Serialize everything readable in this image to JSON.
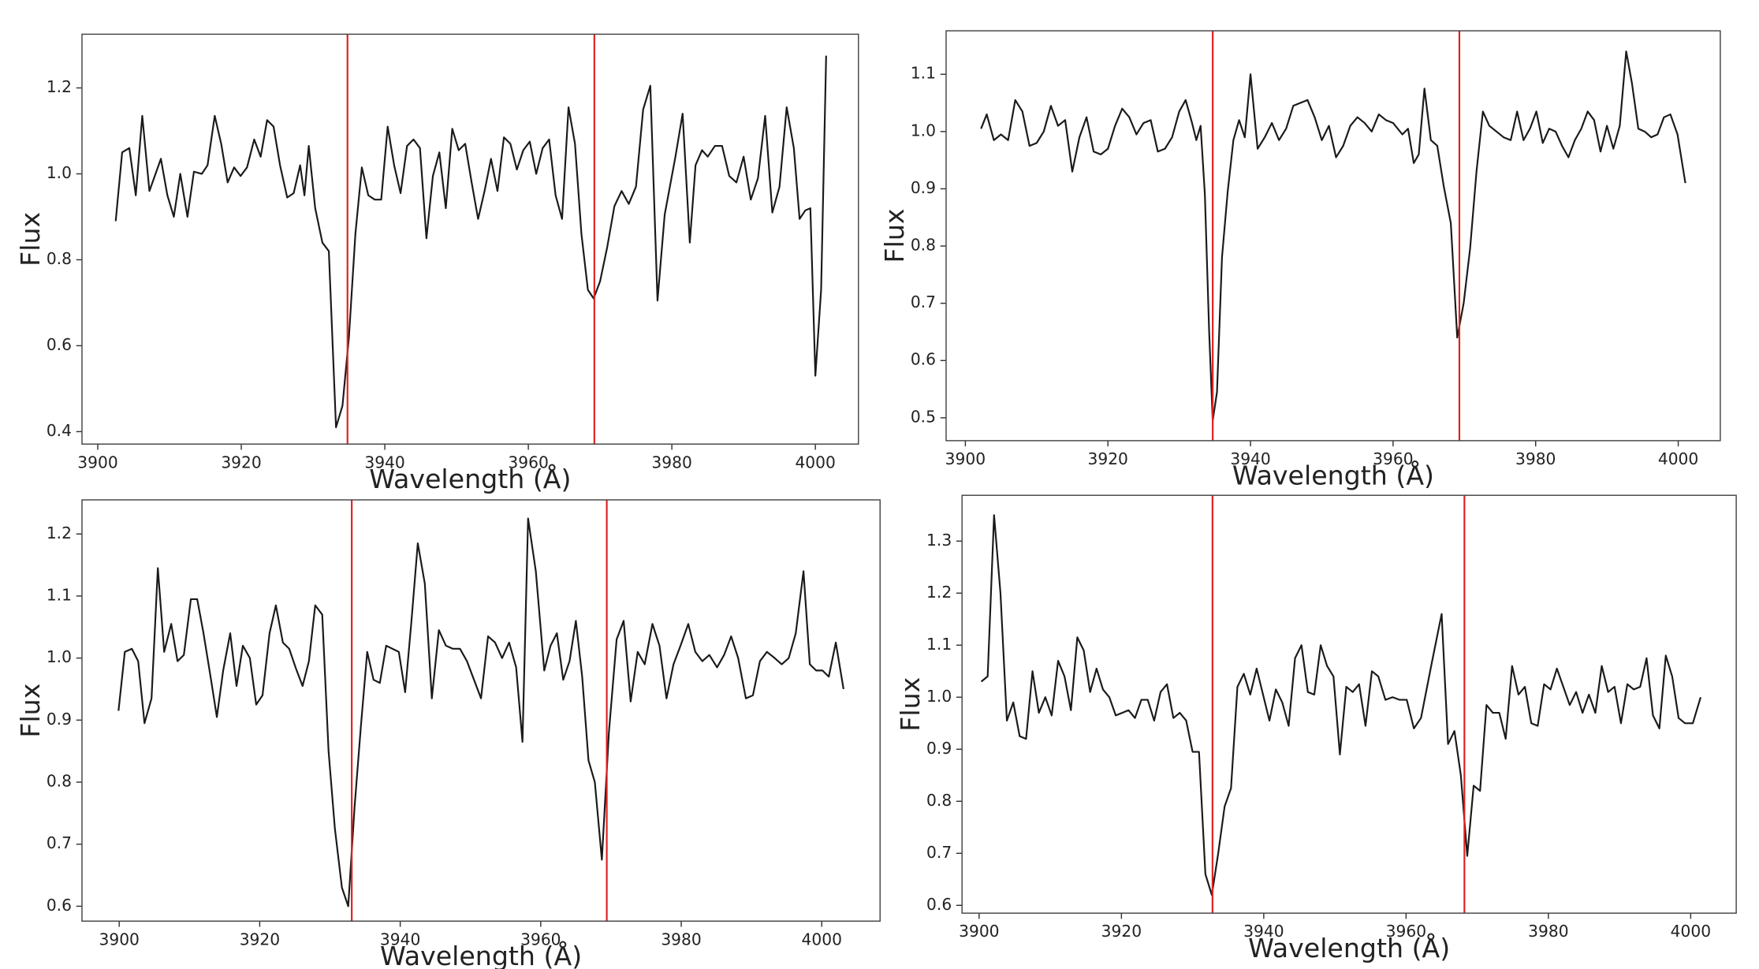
{
  "chart_data": [
    {
      "type": "line",
      "xlabel": "Wavelength (Å)",
      "ylabel": "Flux",
      "color": "#1a1a1a",
      "vline_color": "#e02020",
      "vlines": [
        3934.8,
        3969.2
      ],
      "xlim": [
        3897.8,
        4006
      ],
      "xticks": [
        3900,
        3920,
        3940,
        3960,
        3980,
        4000
      ],
      "ylim": [
        0.371,
        1.325
      ],
      "yticks": [
        0.4,
        0.6,
        0.8,
        {
          "value": 1,
          "label": "1.0"
        },
        1.2
      ],
      "x": [
        3902.5,
        3903.4,
        3904.4,
        3905.3,
        3906.2,
        3907.2,
        3908.8,
        3909.7,
        3910.6,
        3911.5,
        3912.5,
        3913.4,
        3914.5,
        3915.3,
        3916.3,
        3917.2,
        3918.1,
        3919,
        3919.9,
        3920.8,
        3921.8,
        3922.7,
        3923.6,
        3924.5,
        3925.4,
        3926.4,
        3927.3,
        3928.2,
        3928.8,
        3929.4,
        3930.3,
        3931.3,
        3932.2,
        3933.2,
        3934.1,
        3935,
        3935.9,
        3936.8,
        3937.7,
        3938.6,
        3939.5,
        3940.4,
        3941.3,
        3942.2,
        3943.1,
        3944,
        3944.9,
        3945.8,
        3946.7,
        3947.6,
        3948.5,
        3949.4,
        3950.3,
        3951.2,
        3952.1,
        3953,
        3953.9,
        3954.8,
        3955.7,
        3956.6,
        3957.5,
        3958.4,
        3959.3,
        3960.2,
        3961.1,
        3962,
        3962.9,
        3963.8,
        3964.7,
        3965.6,
        3966.5,
        3967.4,
        3968.3,
        3969.1,
        3970,
        3971,
        3972,
        3973,
        3974,
        3975,
        3976,
        3977,
        3978,
        3979,
        3980.5,
        3981.5,
        3982.5,
        3983.3,
        3984.2,
        3985,
        3986,
        3987,
        3988,
        3989,
        3990,
        3991,
        3992,
        3993,
        3994,
        3995,
        3996,
        3997,
        3997.8,
        3998.6,
        3999.3,
        4000,
        4000.8,
        4001.5
      ],
      "values": [
        0.89,
        1.05,
        1.06,
        0.95,
        1.135,
        0.96,
        1.035,
        0.95,
        0.9,
        1.0,
        0.9,
        1.005,
        1.0,
        1.02,
        1.135,
        1.07,
        0.98,
        1.015,
        0.995,
        1.015,
        1.08,
        1.04,
        1.125,
        1.11,
        1.02,
        0.945,
        0.955,
        1.02,
        0.95,
        1.065,
        0.92,
        0.84,
        0.82,
        0.41,
        0.46,
        0.62,
        0.86,
        1.015,
        0.95,
        0.94,
        0.94,
        1.11,
        1.02,
        0.955,
        1.065,
        1.08,
        1.06,
        0.85,
        0.995,
        1.05,
        0.92,
        1.105,
        1.055,
        1.07,
        0.98,
        0.895,
        0.96,
        1.035,
        0.96,
        1.085,
        1.07,
        1.01,
        1.055,
        1.075,
        1.0,
        1.06,
        1.08,
        0.95,
        0.895,
        1.155,
        1.07,
        0.86,
        0.73,
        0.71,
        0.75,
        0.83,
        0.925,
        0.96,
        0.93,
        0.97,
        1.15,
        1.205,
        0.705,
        0.905,
        1.04,
        1.14,
        0.84,
        1.02,
        1.055,
        1.04,
        1.065,
        1.065,
        0.995,
        0.98,
        1.04,
        0.94,
        0.99,
        1.135,
        0.91,
        0.97,
        1.155,
        1.06,
        0.895,
        0.915,
        0.92,
        0.53,
        0.73,
        1.275
      ]
    },
    {
      "type": "line",
      "xlabel": "Wavelength (Å)",
      "ylabel": "Flux",
      "color": "#1a1a1a",
      "vline_color": "#e02020",
      "vlines": [
        3934.7,
        3969.3
      ],
      "xlim": [
        3897.3,
        4005.9
      ],
      "xticks": [
        3900,
        3920,
        3940,
        3960,
        3980,
        4000
      ],
      "ylim": [
        0.46,
        1.176
      ],
      "yticks": [
        0.5,
        0.6,
        0.7,
        0.8,
        0.9,
        {
          "value": 1,
          "label": "1.0"
        },
        1.1
      ],
      "x": [
        3902.2,
        3903,
        3904,
        3905,
        3906,
        3907,
        3908,
        3909,
        3910,
        3911,
        3912,
        3913,
        3914,
        3915,
        3916,
        3917,
        3918,
        3919,
        3920,
        3921,
        3922,
        3923,
        3924,
        3925,
        3926,
        3927,
        3928,
        3929,
        3930,
        3930.9,
        3931.8,
        3932.4,
        3933,
        3933.6,
        3934.2,
        3934.7,
        3935.3,
        3936,
        3936.8,
        3937.6,
        3938.4,
        3939.2,
        3940,
        3941,
        3942,
        3943,
        3944,
        3945,
        3946,
        3947,
        3948,
        3949,
        3950,
        3951,
        3952,
        3953,
        3954,
        3955,
        3956,
        3957,
        3958,
        3959,
        3960,
        3961.3,
        3962.1,
        3962.9,
        3963.6,
        3964.4,
        3965.3,
        3966.2,
        3967.1,
        3968.1,
        3969,
        3969.9,
        3970.8,
        3971.7,
        3972.6,
        3973.5,
        3974.5,
        3975.5,
        3976.5,
        3977.4,
        3978.3,
        3979.2,
        3980.1,
        3981,
        3981.9,
        3982.8,
        3983.7,
        3984.6,
        3985.5,
        3986.4,
        3987.3,
        3988.2,
        3989.1,
        3990,
        3990.9,
        3991.8,
        3992.7,
        3993.5,
        3994.4,
        3995.3,
        3996.2,
        3997.1,
        3998,
        3998.9,
        3999.9,
        4001
      ],
      "values": [
        1.005,
        1.03,
        0.985,
        0.995,
        0.985,
        1.055,
        1.035,
        0.975,
        0.98,
        1.0,
        1.045,
        1.01,
        1.02,
        0.93,
        0.99,
        1.025,
        0.965,
        0.96,
        0.97,
        1.01,
        1.04,
        1.025,
        0.995,
        1.015,
        1.02,
        0.965,
        0.97,
        0.99,
        1.035,
        1.055,
        1.015,
        0.985,
        1.01,
        0.89,
        0.65,
        0.495,
        0.545,
        0.78,
        0.895,
        0.985,
        1.02,
        0.99,
        1.1,
        0.97,
        0.99,
        1.015,
        0.985,
        1.005,
        1.045,
        1.05,
        1.055,
        1.025,
        0.985,
        1.01,
        0.955,
        0.975,
        1.01,
        1.025,
        1.015,
        1.0,
        1.03,
        1.02,
        1.015,
        0.995,
        1.005,
        0.945,
        0.96,
        1.075,
        0.985,
        0.975,
        0.905,
        0.84,
        0.64,
        0.7,
        0.795,
        0.93,
        1.035,
        1.01,
        1.0,
        0.99,
        0.985,
        1.035,
        0.985,
        1.005,
        1.035,
        0.98,
        1.005,
        1.0,
        0.975,
        0.955,
        0.985,
        1.005,
        1.035,
        1.02,
        0.965,
        1.01,
        0.97,
        1.01,
        1.14,
        1.085,
        1.005,
        1.0,
        0.99,
        0.995,
        1.025,
        1.03,
        0.995,
        0.91
      ]
    },
    {
      "type": "line",
      "xlabel": "Wavelength (Å)",
      "ylabel": "Flux",
      "color": "#1a1a1a",
      "vline_color": "#e02020",
      "vlines": [
        3933.1,
        3969.4
      ],
      "xlim": [
        3894.7,
        4008.3
      ],
      "xticks": [
        3900,
        3920,
        3940,
        3960,
        3980,
        4000
      ],
      "ylim": [
        0.576,
        1.255
      ],
      "yticks": [
        0.6,
        0.7,
        0.8,
        0.9,
        {
          "value": 1,
          "label": "1.0"
        },
        1.1,
        1.2
      ],
      "x": [
        3899.9,
        3900.8,
        3901.8,
        3902.7,
        3903.6,
        3904.6,
        3905.5,
        3906.4,
        3907.4,
        3908.3,
        3909.2,
        3910.2,
        3911.1,
        3912,
        3913,
        3913.9,
        3914.8,
        3915.8,
        3916.7,
        3917.6,
        3918.6,
        3919.5,
        3920.4,
        3921.4,
        3922.3,
        3923.3,
        3924.2,
        3925.1,
        3926.1,
        3927,
        3927.9,
        3928.9,
        3929.8,
        3930.7,
        3931.7,
        3932.6,
        3933.5,
        3934.4,
        3935.3,
        3936.2,
        3937.1,
        3938,
        3938.9,
        3939.8,
        3940.7,
        3941.6,
        3942.5,
        3943.5,
        3944.5,
        3945.5,
        3946.5,
        3947.5,
        3948.5,
        3949.5,
        3950.5,
        3951.5,
        3952.5,
        3953.5,
        3954.5,
        3955.5,
        3956.5,
        3957.4,
        3958.2,
        3959.3,
        3960.5,
        3961.4,
        3962.3,
        3963.2,
        3964.1,
        3965,
        3965.9,
        3966.8,
        3967.7,
        3968.7,
        3969.7,
        3970.8,
        3971.8,
        3972.8,
        3973.8,
        3974.8,
        3975.9,
        3976.9,
        3977.9,
        3978.9,
        3979.9,
        3981,
        3982,
        3983,
        3984,
        3985.1,
        3986.1,
        3987.1,
        3988.1,
        3989.2,
        3990.2,
        3991.2,
        3992.2,
        3993.3,
        3994.3,
        3995.3,
        3996.3,
        3997.4,
        3998.3,
        3999.2,
        4000.1,
        4001,
        4002,
        4003.1
      ],
      "values": [
        0.915,
        1.01,
        1.015,
        0.995,
        0.895,
        0.935,
        1.145,
        1.01,
        1.055,
        0.995,
        1.005,
        1.095,
        1.095,
        1.04,
        0.97,
        0.905,
        0.98,
        1.04,
        0.955,
        1.02,
        1.0,
        0.925,
        0.94,
        1.04,
        1.085,
        1.025,
        1.015,
        0.985,
        0.955,
        0.995,
        1.085,
        1.07,
        0.85,
        0.725,
        0.63,
        0.6,
        0.76,
        0.89,
        1.01,
        0.965,
        0.96,
        1.02,
        1.015,
        1.01,
        0.945,
        1.06,
        1.185,
        1.12,
        0.935,
        1.045,
        1.02,
        1.015,
        1.015,
        0.995,
        0.965,
        0.935,
        1.035,
        1.025,
        1.0,
        1.025,
        0.985,
        0.865,
        1.225,
        1.14,
        0.98,
        1.02,
        1.04,
        0.965,
        0.995,
        1.06,
        0.97,
        0.835,
        0.8,
        0.675,
        0.88,
        1.03,
        1.06,
        0.93,
        1.01,
        0.99,
        1.055,
        1.02,
        0.935,
        0.99,
        1.02,
        1.055,
        1.01,
        0.995,
        1.005,
        0.985,
        1.005,
        1.035,
        1.0,
        0.935,
        0.94,
        0.995,
        1.01,
        1.0,
        0.99,
        1.0,
        1.04,
        1.14,
        0.99,
        0.98,
        0.98,
        0.97,
        1.025,
        0.95
      ]
    },
    {
      "type": "line",
      "xlabel": "Wavelength (Å)",
      "ylabel": "Flux",
      "color": "#1a1a1a",
      "vline_color": "#e02020",
      "vlines": [
        3932.8,
        3968.2
      ],
      "xlim": [
        3897.6,
        4006.4
      ],
      "xticks": [
        3900,
        3920,
        3940,
        3960,
        3980,
        4000
      ],
      "ylim": [
        0.585,
        1.388
      ],
      "yticks": [
        0.6,
        0.7,
        0.8,
        0.9,
        {
          "value": 1,
          "label": "1.0"
        },
        1.1,
        1.2,
        1.3
      ],
      "x": [
        3900.3,
        3901.2,
        3902.1,
        3903,
        3903.9,
        3904.8,
        3905.7,
        3906.6,
        3907.5,
        3908.4,
        3909.3,
        3910.2,
        3911.1,
        3912,
        3912.9,
        3913.8,
        3914.7,
        3915.6,
        3916.5,
        3917.4,
        3918.3,
        3919.2,
        3920.1,
        3921,
        3921.9,
        3922.8,
        3923.7,
        3924.6,
        3925.5,
        3926.4,
        3927.3,
        3928.2,
        3929.1,
        3930,
        3930.9,
        3931.8,
        3932.7,
        3933.6,
        3934.5,
        3935.4,
        3936.3,
        3937.2,
        3938.1,
        3939,
        3939.9,
        3940.8,
        3941.7,
        3942.6,
        3943.5,
        3944.4,
        3945.3,
        3946.2,
        3947.1,
        3948,
        3948.9,
        3949.8,
        3950.7,
        3951.6,
        3952.5,
        3953.4,
        3954.3,
        3955.2,
        3956.1,
        3957.1,
        3958.1,
        3959.1,
        3960.1,
        3961.1,
        3962.1,
        3963.6,
        3965,
        3965.9,
        3966.8,
        3967.7,
        3968.6,
        3969.5,
        3970.4,
        3971.3,
        3972.2,
        3973.1,
        3974,
        3974.9,
        3975.8,
        3976.7,
        3977.6,
        3978.5,
        3979.4,
        3980.3,
        3981.2,
        3982.1,
        3983,
        3983.9,
        3984.8,
        3985.7,
        3986.6,
        3987.5,
        3988.4,
        3989.3,
        3990.2,
        3991.1,
        3992,
        3992.9,
        3993.8,
        3994.7,
        3995.6,
        3996.5,
        3997.4,
        3998.3,
        3999.2,
        4000.3,
        4001.4
      ],
      "values": [
        1.03,
        1.04,
        1.35,
        1.2,
        0.955,
        0.99,
        0.925,
        0.92,
        1.05,
        0.97,
        1.0,
        0.965,
        1.07,
        1.04,
        0.975,
        1.115,
        1.09,
        1.01,
        1.055,
        1.015,
        1.0,
        0.965,
        0.97,
        0.975,
        0.96,
        0.995,
        0.995,
        0.955,
        1.01,
        1.025,
        0.96,
        0.97,
        0.955,
        0.895,
        0.895,
        0.66,
        0.62,
        0.7,
        0.79,
        0.825,
        1.02,
        1.045,
        1.005,
        1.055,
        1.005,
        0.955,
        1.015,
        0.99,
        0.945,
        1.075,
        1.1,
        1.01,
        1.005,
        1.1,
        1.06,
        1.04,
        0.89,
        1.02,
        1.01,
        1.025,
        0.945,
        1.05,
        1.04,
        0.995,
        1.0,
        0.995,
        0.995,
        0.94,
        0.96,
        1.065,
        1.16,
        0.91,
        0.935,
        0.85,
        0.695,
        0.83,
        0.82,
        0.985,
        0.97,
        0.97,
        0.92,
        1.06,
        1.005,
        1.02,
        0.95,
        0.945,
        1.025,
        1.015,
        1.055,
        1.02,
        0.985,
        1.01,
        0.97,
        1.005,
        0.97,
        1.06,
        1.01,
        1.02,
        0.95,
        1.025,
        1.015,
        1.02,
        1.075,
        0.965,
        0.94,
        1.08,
        1.04,
        0.96,
        0.95,
        0.95,
        1.0
      ]
    }
  ]
}
